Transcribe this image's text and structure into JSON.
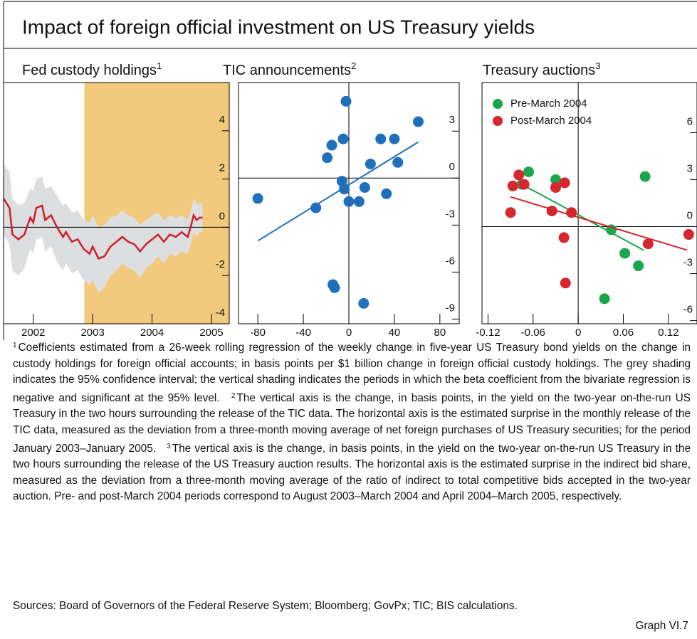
{
  "title": "Impact of foreign official investment on US Treasury yields",
  "chart_data": [
    {
      "type": "line",
      "title": "Fed custody holdings",
      "note_ref": "1",
      "xlim": [
        2001.5,
        2005.3
      ],
      "xticks": [
        2002,
        2003,
        2004,
        2005
      ],
      "ylim": [
        -4,
        6
      ],
      "yticks": [
        -4,
        -2,
        0,
        2,
        4
      ],
      "zero_axes": true,
      "shade_color": "#f2c97d",
      "shaded_periods": [
        [
          2002.86,
          3003.16
        ],
        [
          2003.78,
          2003.8
        ],
        [
          2003.84,
          2003.86
        ],
        [
          2003.91,
          2003.93
        ]
      ],
      "series": [
        {
          "color": "#cc1f2b",
          "band_color": "#dcdee0",
          "x": [
            2001.5,
            2001.6,
            2001.65,
            2001.75,
            2001.85,
            2001.95,
            2002.0,
            2002.05,
            2002.15,
            2002.2,
            2002.3,
            2002.4,
            2002.5,
            2002.55,
            2002.65,
            2002.75,
            2002.85,
            2002.95,
            2003.0,
            2003.1,
            2003.2,
            2003.3,
            2003.4,
            2003.5,
            2003.6,
            2003.7,
            2003.8,
            2003.9,
            2004.0,
            2004.1,
            2004.2,
            2004.3,
            2004.4,
            2004.5,
            2004.6,
            2004.65,
            2004.7,
            2004.75,
            2004.8,
            2004.85
          ],
          "values": [
            1.2,
            0.8,
            -0.3,
            -0.5,
            -0.3,
            0.4,
            0.2,
            0.8,
            0.9,
            0.3,
            0.5,
            0.0,
            -0.4,
            -0.2,
            -0.6,
            -0.5,
            -0.9,
            -1.1,
            -0.8,
            -1.3,
            -1.2,
            -0.8,
            -0.6,
            -0.4,
            -0.6,
            -0.7,
            -1.0,
            -0.7,
            -0.5,
            -0.3,
            -0.6,
            -0.3,
            -0.4,
            -0.2,
            -0.4,
            0.0,
            0.5,
            0.3,
            0.4,
            0.4
          ],
          "ci_upper": [
            2.6,
            2.3,
            1.2,
            0.9,
            1.0,
            1.6,
            1.5,
            2.0,
            2.1,
            1.6,
            1.7,
            1.3,
            0.9,
            1.0,
            0.6,
            0.7,
            0.3,
            0.2,
            0.5,
            0.0,
            0.1,
            0.4,
            0.5,
            0.7,
            0.5,
            0.4,
            0.1,
            0.3,
            0.5,
            0.6,
            0.3,
            0.5,
            0.4,
            0.5,
            0.3,
            0.7,
            1.2,
            1.0,
            1.0,
            1.0
          ],
          "ci_lower": [
            -0.3,
            -0.7,
            -1.8,
            -2.0,
            -1.7,
            -0.9,
            -1.1,
            -0.5,
            -0.4,
            -1.0,
            -0.8,
            -1.4,
            -1.8,
            -1.5,
            -1.9,
            -1.8,
            -2.2,
            -2.4,
            -2.2,
            -2.7,
            -2.5,
            -2.0,
            -1.8,
            -1.5,
            -1.7,
            -1.8,
            -2.1,
            -1.7,
            -1.5,
            -1.2,
            -1.5,
            -1.1,
            -1.2,
            -1.0,
            -1.1,
            -0.7,
            -0.2,
            -0.4,
            -0.2,
            -0.2
          ]
        }
      ]
    },
    {
      "type": "scatter",
      "title": "TIC announcements",
      "note_ref": "2",
      "xlim": [
        -97,
        97
      ],
      "xticks": [
        -80,
        -40,
        0,
        40,
        80
      ],
      "ylim": [
        -9.3,
        6.1
      ],
      "yticks": [
        -9,
        -6,
        -3,
        0,
        3
      ],
      "zero_axes": true,
      "series": [
        {
          "color": "#1f6fba",
          "x": [
            -2.5,
            -5,
            -15,
            -19,
            28,
            40,
            61,
            19,
            43,
            -6,
            -4,
            14,
            33,
            0,
            9,
            -29,
            -80,
            -14,
            -12.5,
            13
          ],
          "y": [
            4.9,
            2.5,
            2.1,
            1.3,
            2.5,
            2.5,
            3.6,
            0.9,
            1.0,
            -0.2,
            -0.7,
            -0.6,
            -1.0,
            -1.5,
            -1.5,
            -1.9,
            -1.3,
            -6.8,
            -7.0,
            -8.0
          ],
          "fit": {
            "x": [
              -80,
              61
            ],
            "y": [
              -4.0,
              2.3
            ]
          }
        }
      ]
    },
    {
      "type": "scatter",
      "title": "Treasury auctions",
      "note_ref": "3",
      "xlim": [
        -0.128,
        0.158
      ],
      "xticks": [
        -0.12,
        -0.06,
        0,
        0.06,
        0.12
      ],
      "ylim": [
        -6.2,
        9.2
      ],
      "yticks": [
        -6,
        -3,
        0,
        3,
        6
      ],
      "zero_axes": true,
      "legend": "upper left",
      "series": [
        {
          "name": "Pre-March 2004",
          "color": "#1aa64a",
          "x": [
            -0.066,
            -0.075,
            -0.03,
            0.089,
            0.044,
            0.062,
            0.08,
            0.035
          ],
          "y": [
            3.5,
            2.7,
            3.0,
            3.2,
            -0.2,
            -1.7,
            -2.5,
            -4.6
          ],
          "fit": {
            "x": [
              -0.075,
              0.087
            ],
            "y": [
              2.7,
              -1.5
            ]
          }
        },
        {
          "name": "Post-March 2004",
          "color": "#d7262e",
          "x": [
            -0.079,
            -0.087,
            -0.072,
            -0.03,
            -0.018,
            -0.09,
            -0.035,
            -0.009,
            -0.019,
            -0.017,
            0.093,
            0.147
          ],
          "y": [
            3.3,
            2.6,
            2.7,
            2.5,
            2.8,
            0.9,
            1.0,
            0.9,
            -0.7,
            -3.6,
            -1.1,
            -0.5
          ],
          "fit": {
            "x": [
              -0.09,
              0.145
            ],
            "y": [
              1.9,
              -1.5
            ]
          }
        }
      ]
    }
  ],
  "notes": [
    {
      "ref": "1",
      "text": "Coefficients estimated from a 26-week rolling regression of the weekly change in five-year US Treasury bond yields on the change in custody holdings for foreign official accounts; in basis points per $1 billion change in foreign official custody holdings. The grey shading indicates the 95% confidence interval; the vertical shading indicates the periods in which the beta coefficient from the bivariate regression is negative and significant at the 95% level."
    },
    {
      "ref": "2",
      "text": "The vertical axis is the change, in basis points, in the yield on the two-year on-the-run US Treasury in the two hours surrounding the release of the TIC data. The horizontal axis is the estimated surprise in the monthly release of the TIC data, measured as the deviation from a three-month moving average of net foreign purchases of US Treasury securities; for the period January 2003–January 2005."
    },
    {
      "ref": "3",
      "text": "The vertical axis is the change, in basis points, in the yield on the two-year on-the-run US Treasury in the two hours surrounding the release of the US Treasury auction results. The horizontal axis is the estimated surprise in the indirect bid share, measured as the deviation from a three-month moving average of the ratio of indirect to total competitive bids accepted in the two-year auction. Pre- and post-March 2004 periods correspond to August 2003–March 2004 and April 2004–March 2005, respectively."
    }
  ],
  "sources": "Sources: Board of Governors of the Federal Reserve System; Bloomberg; GovPx; TIC; BIS calculations.",
  "graph_label": "Graph VI.7"
}
